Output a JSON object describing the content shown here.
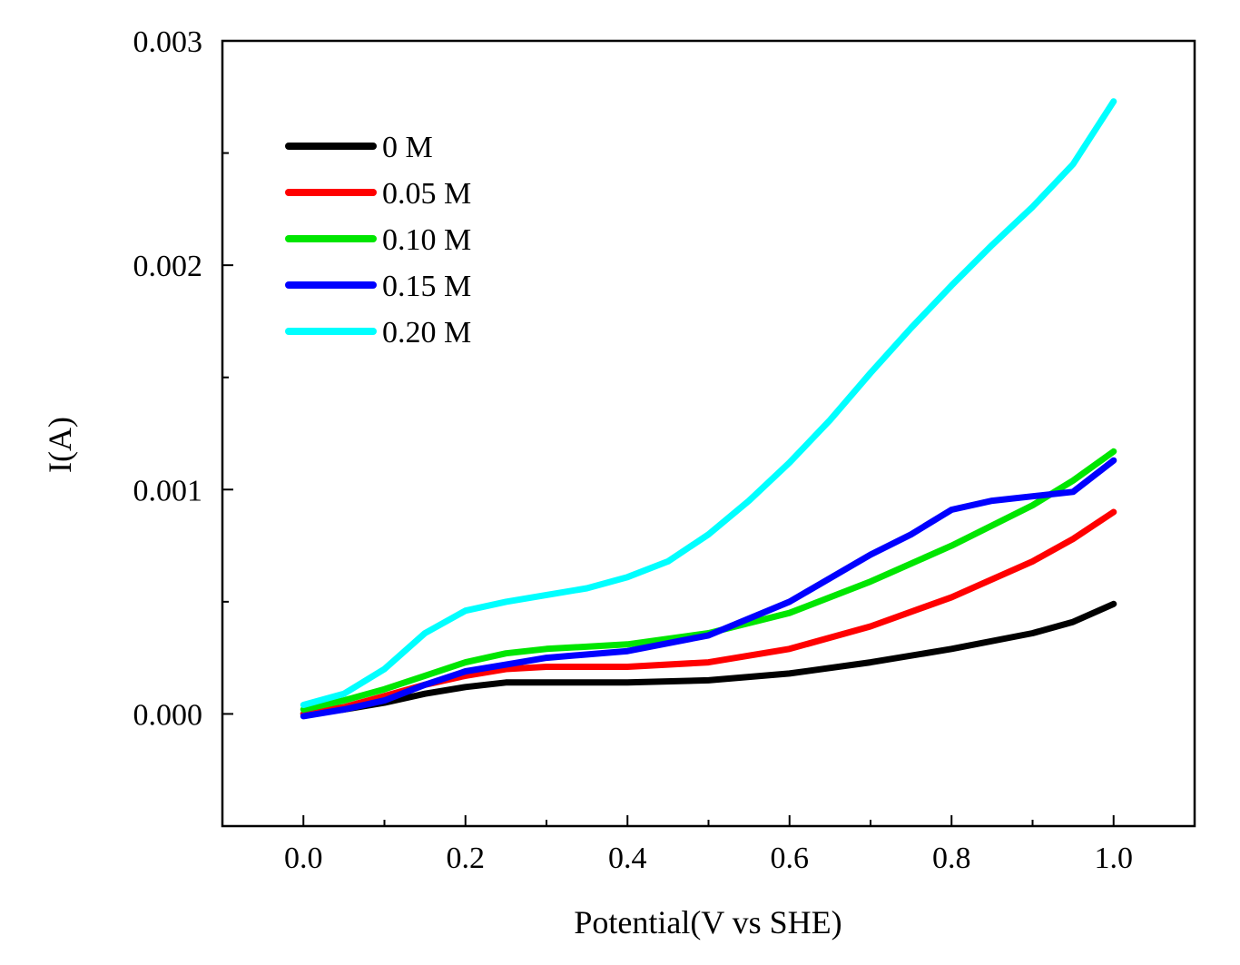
{
  "chart_data": {
    "type": "line",
    "title": "",
    "xlabel": "Potential(V vs SHE)",
    "ylabel": "I(A)",
    "xlim": [
      -0.1,
      1.1
    ],
    "ylim": [
      -0.0005,
      0.003
    ],
    "x_ticks": [
      0.0,
      0.2,
      0.4,
      0.6,
      0.8,
      1.0
    ],
    "x_tick_labels": [
      "0.0",
      "0.2",
      "0.4",
      "0.6",
      "0.8",
      "1.0"
    ],
    "y_ticks": [
      0.0,
      0.001,
      0.002,
      0.003
    ],
    "y_tick_labels": [
      "0.000",
      "0.001",
      "0.002",
      "0.003"
    ],
    "grid": false,
    "legend_position": "top-left",
    "series": [
      {
        "name": "0 M",
        "color": "#000000",
        "points": [
          [
            0.0,
            0.0
          ],
          [
            0.05,
            2e-05
          ],
          [
            0.1,
            5e-05
          ],
          [
            0.15,
            9e-05
          ],
          [
            0.2,
            0.00012
          ],
          [
            0.25,
            0.00014
          ],
          [
            0.3,
            0.00014
          ],
          [
            0.4,
            0.00014
          ],
          [
            0.5,
            0.00015
          ],
          [
            0.6,
            0.00018
          ],
          [
            0.7,
            0.00023
          ],
          [
            0.8,
            0.00029
          ],
          [
            0.9,
            0.00036
          ],
          [
            0.95,
            0.00041
          ],
          [
            1.0,
            0.00049
          ]
        ]
      },
      {
        "name": "0.05 M",
        "color": "#ff0000",
        "points": [
          [
            0.0,
            0.0
          ],
          [
            0.05,
            3e-05
          ],
          [
            0.1,
            8e-05
          ],
          [
            0.15,
            0.00013
          ],
          [
            0.2,
            0.00017
          ],
          [
            0.25,
            0.0002
          ],
          [
            0.3,
            0.00021
          ],
          [
            0.4,
            0.00021
          ],
          [
            0.5,
            0.00023
          ],
          [
            0.6,
            0.00029
          ],
          [
            0.7,
            0.00039
          ],
          [
            0.8,
            0.00052
          ],
          [
            0.9,
            0.00068
          ],
          [
            0.95,
            0.00078
          ],
          [
            1.0,
            0.0009
          ]
        ]
      },
      {
        "name": "0.10 M",
        "color": "#00e600",
        "points": [
          [
            0.0,
            2e-05
          ],
          [
            0.05,
            6e-05
          ],
          [
            0.1,
            0.00011
          ],
          [
            0.15,
            0.00017
          ],
          [
            0.2,
            0.00023
          ],
          [
            0.25,
            0.00027
          ],
          [
            0.3,
            0.00029
          ],
          [
            0.4,
            0.00031
          ],
          [
            0.5,
            0.00036
          ],
          [
            0.6,
            0.00045
          ],
          [
            0.7,
            0.00059
          ],
          [
            0.8,
            0.00075
          ],
          [
            0.9,
            0.00093
          ],
          [
            0.95,
            0.00104
          ],
          [
            1.0,
            0.00117
          ]
        ]
      },
      {
        "name": "0.15 M",
        "color": "#0000ff",
        "points": [
          [
            0.0,
            -1e-05
          ],
          [
            0.05,
            2e-05
          ],
          [
            0.1,
            6e-05
          ],
          [
            0.15,
            0.00013
          ],
          [
            0.2,
            0.00019
          ],
          [
            0.25,
            0.00022
          ],
          [
            0.3,
            0.00025
          ],
          [
            0.4,
            0.00028
          ],
          [
            0.5,
            0.00035
          ],
          [
            0.6,
            0.0005
          ],
          [
            0.7,
            0.00071
          ],
          [
            0.75,
            0.0008
          ],
          [
            0.8,
            0.00091
          ],
          [
            0.85,
            0.00095
          ],
          [
            0.9,
            0.00097
          ],
          [
            0.95,
            0.00099
          ],
          [
            1.0,
            0.00113
          ]
        ]
      },
      {
        "name": "0.20 M",
        "color": "#00ffff",
        "points": [
          [
            0.0,
            4e-05
          ],
          [
            0.05,
            9e-05
          ],
          [
            0.1,
            0.0002
          ],
          [
            0.15,
            0.00036
          ],
          [
            0.2,
            0.00046
          ],
          [
            0.25,
            0.0005
          ],
          [
            0.3,
            0.00053
          ],
          [
            0.35,
            0.00056
          ],
          [
            0.4,
            0.00061
          ],
          [
            0.45,
            0.00068
          ],
          [
            0.5,
            0.0008
          ],
          [
            0.55,
            0.00095
          ],
          [
            0.6,
            0.00112
          ],
          [
            0.65,
            0.00131
          ],
          [
            0.7,
            0.00152
          ],
          [
            0.75,
            0.00172
          ],
          [
            0.8,
            0.00191
          ],
          [
            0.85,
            0.00209
          ],
          [
            0.9,
            0.00226
          ],
          [
            0.95,
            0.00245
          ],
          [
            1.0,
            0.00273
          ]
        ]
      }
    ]
  }
}
